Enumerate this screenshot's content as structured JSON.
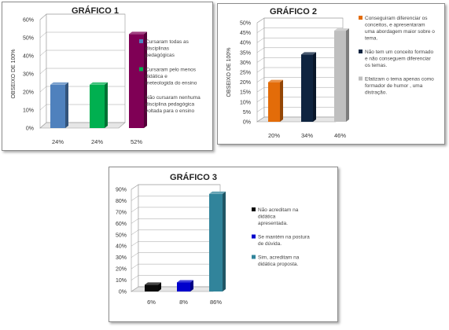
{
  "chart_data": [
    {
      "type": "bar",
      "title": "GRÁFICO 1",
      "ylabel": "OBSEIXO DE 100%",
      "ylim": [
        0,
        60
      ],
      "yticks": [
        "0%",
        "10%",
        "20%",
        "30%",
        "40%",
        "50%",
        "60%"
      ],
      "categories": [
        "24%",
        "24%",
        "52%"
      ],
      "values": [
        24,
        24,
        52
      ],
      "colors": [
        "#4f81bd",
        "#00b050",
        "#7f0055"
      ],
      "legend": [
        "Cursaram todas as disciplinas pedagógicas",
        "Cursaram pelo menos didática e meteologida do ensino",
        "Não cursaram nenhuma disciplina pedagógica voltada para o ensino"
      ],
      "legend_position": "right",
      "grid": true
    },
    {
      "type": "bar",
      "title": "GRÁFICO 2",
      "ylabel": "OBSEIXO DE 100%",
      "ylim": [
        0,
        50
      ],
      "yticks": [
        "0%",
        "5%",
        "10%",
        "15%",
        "20%",
        "25%",
        "30%",
        "35%",
        "40%",
        "45%",
        "50%"
      ],
      "categories": [
        "20%",
        "34%",
        "46%"
      ],
      "values": [
        20,
        34,
        46
      ],
      "colors": [
        "#e36c09",
        "#0f2440",
        "#bfbfbf"
      ],
      "legend": [
        "Conseguiram diferenciar os conceitos, e apresentaram uma abordagem maior sobre o tema.",
        "Não tem um conceito formado e não conseguem diferenciar os temas.",
        "Efatizam o tema apenas como formador de humor , uma distração."
      ],
      "legend_position": "right",
      "grid": true
    },
    {
      "type": "bar",
      "title": "GRÁFICO 3",
      "ylabel": "",
      "ylim": [
        0,
        90
      ],
      "yticks": [
        "0%",
        "10%",
        "20%",
        "30%",
        "40%",
        "50%",
        "60%",
        "70%",
        "80%",
        "90%"
      ],
      "categories": [
        "6%",
        "8%",
        "86%"
      ],
      "values": [
        6,
        8,
        86
      ],
      "colors": [
        "#0a0a0a",
        "#0000cc",
        "#31849b"
      ],
      "legend": [
        "Não acreditam na didática apresentada.",
        "Se mantém na postura de dúvida.",
        "Sim, acreditam na didática proposta."
      ],
      "legend_position": "right",
      "grid": true
    }
  ]
}
